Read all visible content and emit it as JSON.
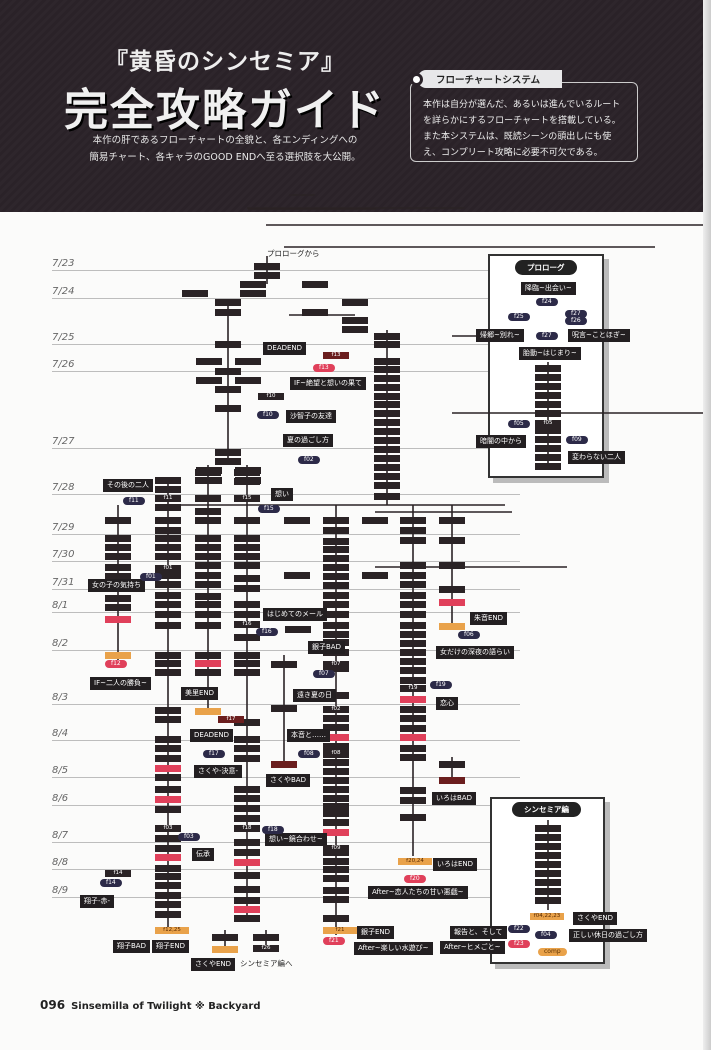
{
  "header": {
    "title_small": "『黄昏のシンセミア』",
    "title_large": "完全攻略ガイド",
    "lead_1": "本作の肝であるフローチャートの全貌と、各エンディングへの",
    "lead_2": "簡易チャート、各キャラのGOOD ENDへ至る選択肢を大公開。"
  },
  "system_box": {
    "title": "フローチャートシステム",
    "body": "本作は自分が選んだ、あるいは進んでいるルートを詳らかにするフローチャートを搭載している。また本システムは、既読シーンの頭出しにも使え、コンプリート攻略に必要不可欠である。"
  },
  "colors": {
    "node": "#2a2325",
    "flag_red": "#e0405a",
    "good_end": "#e9a24a",
    "bad_end": "#6b1e1e",
    "pill": "#2c2a48",
    "header_bg": "#2a2228"
  },
  "chart": {
    "start": "プロローグから",
    "to_sinsemia": "シンセミア編へ",
    "dates": [
      "7/23",
      "7/24",
      "7/25",
      "7/26",
      "7/27",
      "7/28",
      "7/29",
      "7/30",
      "7/31",
      "8/1",
      "8/2",
      "8/3",
      "8/4",
      "8/5",
      "8/6",
      "8/7",
      "8/8",
      "8/9"
    ],
    "labels": [
      "DEADEND",
      "IF~絶望と想いの果て",
      "沙智子の友達",
      "夏の過ごし方",
      "その後の二人",
      "想い",
      "女の子の気持ち",
      "はじめてのメール",
      "朱音END",
      "銀子BAD",
      "女だけの深夜の語らい",
      "IF~二人の勝負~",
      "遠き夏の日",
      "美里END",
      "恋心",
      "DEADEND",
      "本音と……",
      "さくや-決意-",
      "さくやBAD",
      "いろはBAD",
      "想い~鏡合わせ~",
      "伝承",
      "いろはEND",
      "After~恋人たちの甘い悪戯~",
      "翔子-赤-",
      "銀子END",
      "翔子BAD",
      "翔子END",
      "After~楽しい水遊び~",
      "さくやEND",
      "報告と、そして",
      "After~ヒメごと~",
      "さくやEND",
      "正しい休日の過ごし方",
      "降臨~出会い~",
      "帰郷~別れ~",
      "呪言~ことほぎ~",
      "胎動~はじまり~",
      "暗闇の中から",
      "変わらない二人"
    ],
    "pills": [
      "f13",
      "f10",
      "f02",
      "f11",
      "f15",
      "f01",
      "f16",
      "f06",
      "f12",
      "f07",
      "f19",
      "f17",
      "f08",
      "f18",
      "f03",
      "f14",
      "f20",
      "f21",
      "f22",
      "f04",
      "f23",
      "comp",
      "f24",
      "f25",
      "f27",
      "f26",
      "f27",
      "f05",
      "f09"
    ],
    "bar_tags": [
      "f13",
      "f10",
      "f11",
      "f15",
      "f01",
      "f16",
      "f07",
      "f19",
      "f02",
      "f17",
      "f08",
      "f03",
      "f18",
      "f09",
      "f14",
      "f20,24",
      "f12,25",
      "f21",
      "f26",
      "f05",
      "f04,22,23"
    ],
    "prologue_title": "プロローグ",
    "sinsemia_title": "シンセミア編"
  },
  "footer": {
    "page": "096",
    "text": "Sinsemilla of Twilight",
    "sep": "※",
    "section": "Backyard"
  }
}
